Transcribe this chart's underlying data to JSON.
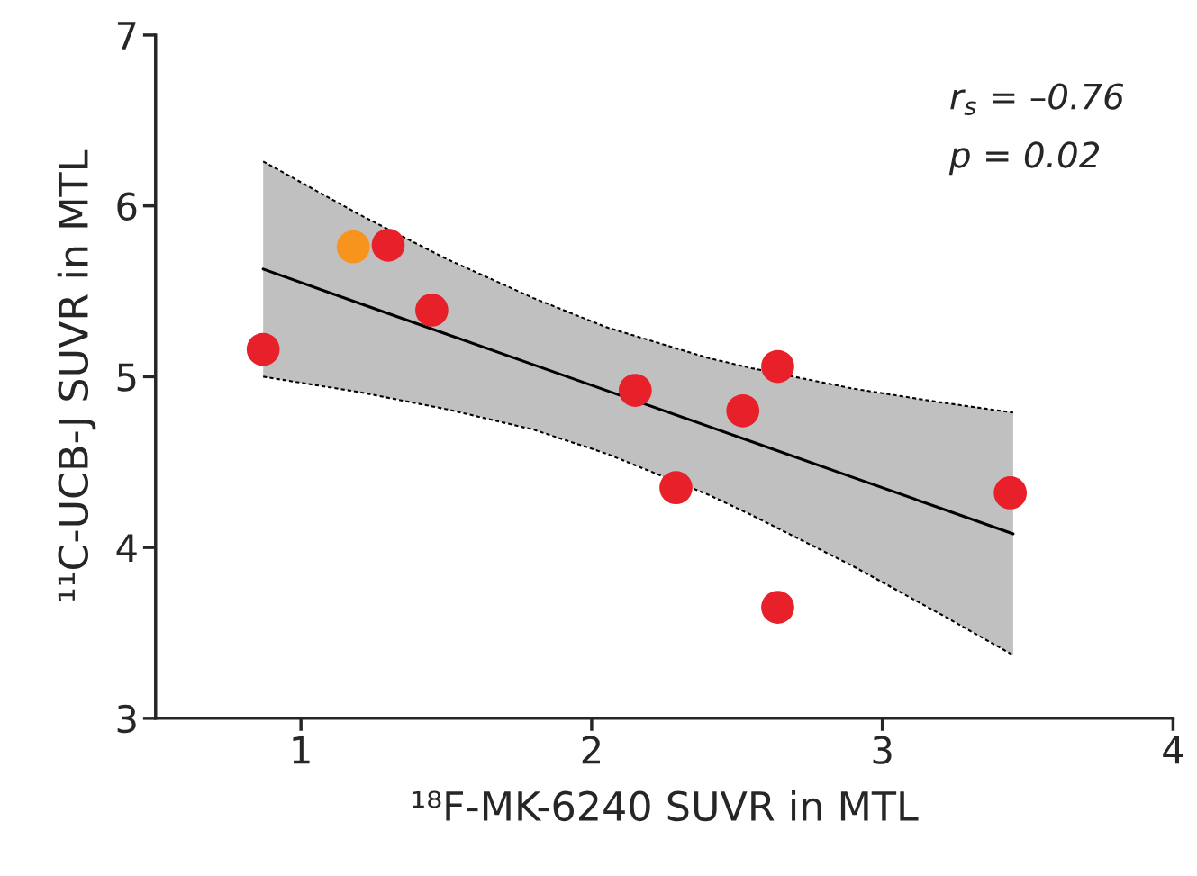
{
  "chart_data": {
    "type": "scatter",
    "xlabel": "¹⁸F-MK-6240 SUVR in MTL",
    "ylabel": "¹¹C-UCB-J SUVR in MTL",
    "xlim": [
      0.5,
      4
    ],
    "xticks": [
      1,
      2,
      3,
      4
    ],
    "ylim": [
      3,
      7
    ],
    "yticks": [
      3,
      4,
      5,
      6,
      7
    ],
    "grid": false,
    "legend": false,
    "annotations": [
      "r$_{s}$ = –0.76",
      "p = 0.02"
    ],
    "series": [
      {
        "type": "line",
        "color": "#000000",
        "marker": "none",
        "line_style": "solid",
        "x": [
          0.87,
          1.2,
          1.5,
          1.8,
          2.05,
          2.4,
          2.55,
          2.9,
          3.2,
          3.45
        ],
        "values": [
          5.63,
          5.43,
          5.25,
          5.07,
          4.92,
          4.71,
          4.62,
          4.41,
          4.23,
          4.08
        ],
        "lower": [
          5.0,
          4.91,
          4.81,
          4.69,
          4.55,
          4.31,
          4.19,
          3.89,
          3.61,
          3.37
        ],
        "upper": [
          6.26,
          5.95,
          5.69,
          5.46,
          5.29,
          5.11,
          5.05,
          4.93,
          4.85,
          4.79
        ]
      },
      {
        "type": "line",
        "color": "#000000",
        "marker": "none",
        "line_style": "dashed",
        "x": [
          0.87,
          1.2,
          1.5,
          1.8,
          2.05,
          2.4,
          2.55,
          2.9,
          3.2,
          3.45
        ],
        "values": [
          5.0,
          4.91,
          4.81,
          4.69,
          4.55,
          4.31,
          4.19,
          3.89,
          3.61,
          3.37
        ]
      },
      {
        "type": "line",
        "color": "#000000",
        "marker": "none",
        "line_style": "dashed",
        "x": [
          0.87,
          1.2,
          1.5,
          1.8,
          2.05,
          2.4,
          2.55,
          2.9,
          3.2,
          3.45
        ],
        "values": [
          6.26,
          5.95,
          5.69,
          5.46,
          5.29,
          5.11,
          5.05,
          4.93,
          4.85,
          4.79
        ]
      },
      {
        "color": "#e8202a",
        "marker": "circle",
        "x": [
          0.87,
          1.3,
          1.45,
          2.15,
          2.29,
          2.52,
          2.64,
          2.64,
          3.44
        ],
        "values": [
          5.16,
          5.77,
          5.39,
          4.92,
          4.35,
          4.8,
          5.06,
          3.65,
          4.32
        ]
      },
      {
        "color": "#f7941d",
        "marker": "circle",
        "x": [
          1.18
        ],
        "values": [
          5.76
        ]
      }
    ]
  }
}
